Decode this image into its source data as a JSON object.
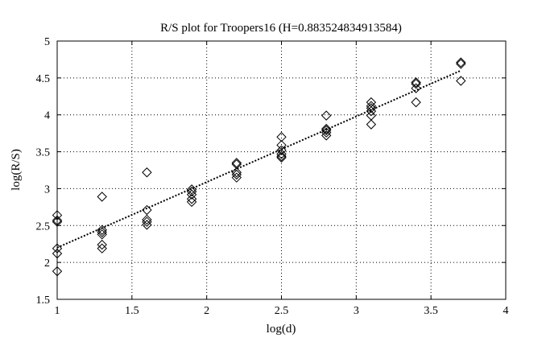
{
  "chart_data": {
    "type": "scatter",
    "title": "R/S plot for Troopers16 (H=0.883524834913584)",
    "xlabel": "log(d)",
    "ylabel": "log(R/S)",
    "xlim": [
      1,
      4
    ],
    "ylim": [
      1.5,
      5
    ],
    "xticks": [
      "1",
      "1.5",
      "2",
      "2.5",
      "3",
      "3.5",
      "4"
    ],
    "yticks": [
      "1.5",
      "2",
      "2.5",
      "3",
      "3.5",
      "4",
      "4.5",
      "5"
    ],
    "grid": true,
    "marker": "diamond",
    "series": [
      {
        "points": [
          [
            1.0,
            2.64
          ],
          [
            1.0,
            2.57
          ],
          [
            1.0,
            2.55
          ],
          [
            1.0,
            2.19
          ],
          [
            1.0,
            2.12
          ],
          [
            1.0,
            1.88
          ],
          [
            1.3,
            2.89
          ],
          [
            1.3,
            2.44
          ],
          [
            1.3,
            2.41
          ],
          [
            1.3,
            2.38
          ],
          [
            1.3,
            2.24
          ],
          [
            1.3,
            2.19
          ],
          [
            1.6,
            3.22
          ],
          [
            1.6,
            2.71
          ],
          [
            1.6,
            2.58
          ],
          [
            1.6,
            2.55
          ],
          [
            1.6,
            2.51
          ],
          [
            1.9,
            2.99
          ],
          [
            1.9,
            2.96
          ],
          [
            1.9,
            2.92
          ],
          [
            1.9,
            2.86
          ],
          [
            1.9,
            2.82
          ],
          [
            2.2,
            3.35
          ],
          [
            2.2,
            3.33
          ],
          [
            2.2,
            3.22
          ],
          [
            2.2,
            3.19
          ],
          [
            2.2,
            3.15
          ],
          [
            2.5,
            3.7
          ],
          [
            2.5,
            3.59
          ],
          [
            2.5,
            3.52
          ],
          [
            2.5,
            3.47
          ],
          [
            2.5,
            3.44
          ],
          [
            2.5,
            3.42
          ],
          [
            2.8,
            3.99
          ],
          [
            2.8,
            3.81
          ],
          [
            2.8,
            3.79
          ],
          [
            2.8,
            3.76
          ],
          [
            2.8,
            3.72
          ],
          [
            3.1,
            4.17
          ],
          [
            3.1,
            4.12
          ],
          [
            3.1,
            4.09
          ],
          [
            3.1,
            4.05
          ],
          [
            3.1,
            3.99
          ],
          [
            3.1,
            3.87
          ],
          [
            3.4,
            4.44
          ],
          [
            3.4,
            4.42
          ],
          [
            3.4,
            4.36
          ],
          [
            3.4,
            4.17
          ],
          [
            3.7,
            4.71
          ],
          [
            3.7,
            4.69
          ],
          [
            3.7,
            4.46
          ]
        ]
      }
    ],
    "fit_line": {
      "style": "dotted",
      "x": [
        1.0,
        3.7
      ],
      "y": [
        2.2,
        4.6
      ]
    }
  }
}
